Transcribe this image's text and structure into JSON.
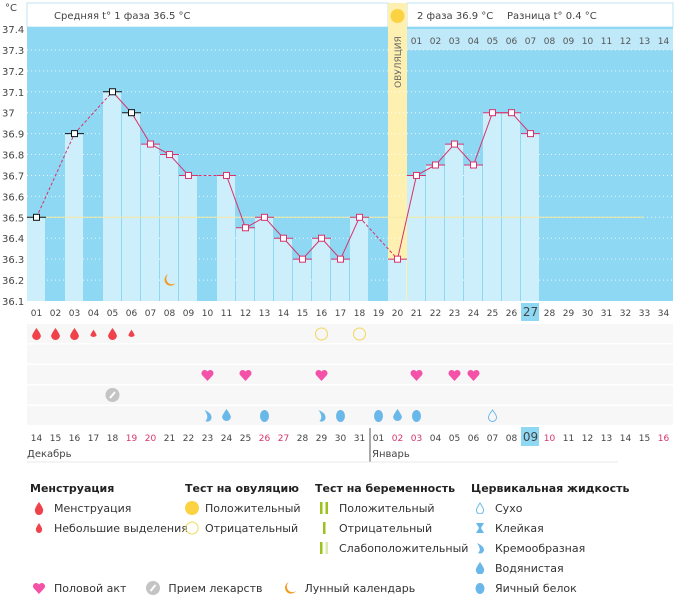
{
  "chart_data": {
    "type": "line",
    "yunit": "°C",
    "ylim": [
      36.1,
      37.4
    ],
    "yticks": [
      "37.4",
      "37.3",
      "37.2",
      "37.1",
      "37",
      "36.9",
      "36.8",
      "36.7",
      "36.6",
      "36.5",
      "36.4",
      "36.3",
      "36.2",
      "36.1"
    ],
    "cycle_days": [
      "01",
      "02",
      "03",
      "04",
      "05",
      "06",
      "07",
      "08",
      "09",
      "10",
      "11",
      "12",
      "13",
      "14",
      "15",
      "16",
      "17",
      "18",
      "19",
      "20",
      "21",
      "22",
      "23",
      "24",
      "25",
      "26",
      "27",
      "28",
      "29",
      "30",
      "31",
      "32",
      "33",
      "34"
    ],
    "temperatures": [
      36.5,
      null,
      36.9,
      null,
      37.1,
      37.0,
      36.85,
      36.8,
      36.7,
      null,
      36.7,
      36.45,
      36.5,
      36.4,
      36.3,
      36.4,
      36.3,
      36.5,
      null,
      36.3,
      36.7,
      36.75,
      36.85,
      36.75,
      37.0,
      37.0,
      36.9
    ],
    "excluded_days": [
      1,
      3,
      5,
      6
    ],
    "cover_line": 36.5,
    "ovulation_day": 20,
    "ovulation_label": "ОВУЛЯЦИЯ",
    "current_day": 27,
    "phase2_days": [
      "01",
      "02",
      "03",
      "04",
      "05",
      "06",
      "07",
      "08",
      "09",
      "10",
      "11",
      "12",
      "13",
      "14"
    ],
    "phase1_text": "Средняя t° 1 фаза 36.5 °C",
    "phase2_text": "2 фаза 36.9 °C",
    "diff_text": "Разница t° 0.4 °C",
    "dates": [
      "14",
      "15",
      "16",
      "17",
      "18",
      "19",
      "20",
      "21",
      "22",
      "23",
      "24",
      "25",
      "26",
      "27",
      "28",
      "29",
      "30",
      "31",
      "01",
      "02",
      "03",
      "04",
      "05",
      "06",
      "07",
      "08",
      "09",
      "10",
      "11",
      "12",
      "13",
      "14",
      "15",
      "16"
    ],
    "weekend_dates_idx": [
      5,
      6,
      12,
      13,
      19,
      20,
      27,
      33
    ],
    "months": [
      "Декабрь",
      "Январь"
    ],
    "moon_day": 8,
    "menstruation": {
      "1": "heavy",
      "2": "heavy",
      "3": "heavy",
      "4": "light",
      "5": "heavy",
      "6": "light"
    },
    "ovulation_tests": {
      "16": "negative",
      "18": "negative"
    },
    "intercourse": [
      10,
      12,
      16,
      21,
      23,
      24
    ],
    "medication": [
      5
    ],
    "cervical": {
      "10": "creamy",
      "11": "watery",
      "13": "eggwhite",
      "16": "creamy",
      "17": "eggwhite",
      "19": "eggwhite",
      "20": "watery",
      "21": "eggwhite",
      "25": "dry"
    }
  },
  "colors": {
    "bg": "#8ed8f3",
    "bar": "#cdeefb",
    "line": "#d8336b",
    "ovulation": "#fdf0b0",
    "blood": "#f0424a",
    "heart": "#f352a8",
    "sun": "#fbd342",
    "fluid": "#6ab8ea",
    "test": "#9cc21c"
  },
  "legend": {
    "menstruation": {
      "title": "Менструация",
      "items": [
        "Менструация",
        "Небольшие выделения"
      ]
    },
    "ovulation_test": {
      "title": "Тест на овуляцию",
      "items": [
        "Положительный",
        "Отрицательный"
      ]
    },
    "pregnancy_test": {
      "title": "Тест на беременность",
      "items": [
        "Положительный",
        "Отрицательный",
        "Слабоположительный"
      ]
    },
    "cervical": {
      "title": "Цервикальная жидкость",
      "items": [
        "Сухо",
        "Клейкая",
        "Кремообразная",
        "Водянистая",
        "Яичный белок"
      ]
    },
    "other": [
      "Половой акт",
      "Прием лекарств",
      "Лунный календарь"
    ]
  }
}
